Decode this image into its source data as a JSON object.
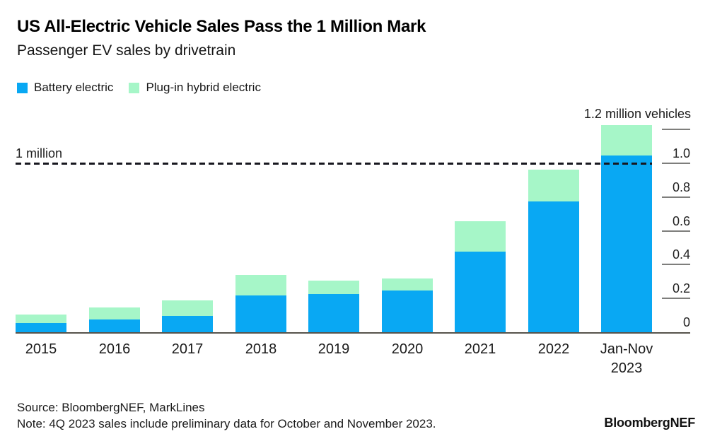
{
  "title": "US All-Electric Vehicle Sales Pass the 1 Million Mark",
  "subtitle": "Passenger EV sales by drivetrain",
  "legend": {
    "items": [
      {
        "label": "Battery electric",
        "color": "#09a8f3"
      },
      {
        "label": "Plug-in hybrid electric",
        "color": "#a6f6c8"
      }
    ]
  },
  "axis": {
    "top_label": "1.2 million vehicles",
    "tick_labels": [
      "0",
      "0.2",
      "0.4",
      "0.6",
      "0.8",
      "1.0"
    ]
  },
  "chart_data": {
    "type": "bar",
    "stacked": true,
    "unit": "million vehicles",
    "title": "US All-Electric Vehicle Sales Pass the 1 Million Mark",
    "subtitle": "Passenger EV sales by drivetrain",
    "categories": [
      "2015",
      "2016",
      "2017",
      "2018",
      "2019",
      "2020",
      "2021",
      "2022",
      "Jan-Nov 2023"
    ],
    "series": [
      {
        "name": "Battery electric",
        "color": "#09a8f3",
        "values": [
          0.06,
          0.08,
          0.1,
          0.22,
          0.23,
          0.25,
          0.48,
          0.78,
          1.05
        ]
      },
      {
        "name": "Plug-in hybrid electric",
        "color": "#a6f6c8",
        "values": [
          0.05,
          0.07,
          0.09,
          0.12,
          0.08,
          0.07,
          0.18,
          0.19,
          0.18
        ]
      }
    ],
    "ylim": [
      0,
      1.25
    ],
    "yticks": [
      0,
      0.2,
      0.4,
      0.6,
      0.8,
      1.0,
      1.2
    ],
    "grid": false,
    "legend_position": "top-left",
    "axis_side": "right",
    "reference_line": {
      "value": 1.0,
      "label": "1 million",
      "style": "dashed",
      "color": "#17171f"
    }
  },
  "footer": {
    "source": "Source: BloombergNEF, MarkLines",
    "note": "Note: 4Q 2023 sales include preliminary data for October and November 2023.",
    "logo": "BloombergNEF"
  },
  "colors": {
    "background": "#ffffff",
    "baseline": "#57534c",
    "tick": "#7e7e7c",
    "text": "#1a1a1a"
  }
}
